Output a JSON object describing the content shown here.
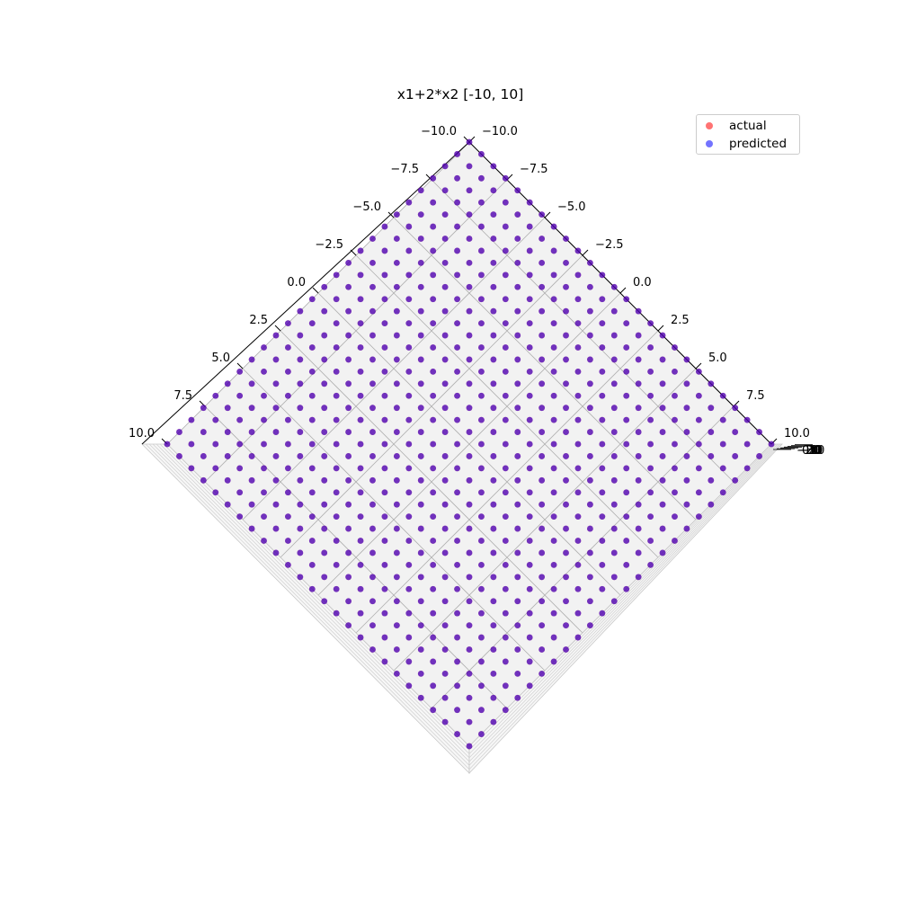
{
  "chart_data": {
    "type": "scatter",
    "projection": "3d",
    "title": "x1+2*x2 [-10, 10]",
    "x_axis": {
      "label": "",
      "range": [
        -10,
        10
      ],
      "ticks": [
        "−10.0",
        "−7.5",
        "−5.0",
        "−2.5",
        "0.0",
        "2.5",
        "5.0",
        "7.5",
        "10.0"
      ]
    },
    "y_axis": {
      "label": "",
      "range": [
        -10,
        10
      ],
      "ticks": [
        "−10.0",
        "−7.5",
        "−5.0",
        "−2.5",
        "0.0",
        "2.5",
        "5.0",
        "7.5",
        "10.0"
      ]
    },
    "z_axis": {
      "label": "",
      "ticks": [
        "−30",
        "−20",
        "−10",
        "0",
        "10",
        "20",
        "30"
      ],
      "note": "tick labels overlap (edge-on view)"
    },
    "grid": true,
    "view": "top-down, axes rotated 45 degrees",
    "x1_values": [
      -10,
      -9.2,
      -8.4,
      -7.6,
      -6.8,
      -6,
      -5.2,
      -4.4,
      -3.6,
      -2.8,
      -2,
      -1.2,
      -0.4,
      0.4,
      1.2,
      2,
      2.8,
      3.6,
      4.4,
      5.2,
      6,
      6.8,
      7.6,
      8.4,
      9.2,
      10
    ],
    "x2_values": [
      -10,
      -9.2,
      -8.4,
      -7.6,
      -6.8,
      -6,
      -5.2,
      -4.4,
      -3.6,
      -2.8,
      -2,
      -1.2,
      -0.4,
      0.4,
      1.2,
      2,
      2.8,
      3.6,
      4.4,
      5.2,
      6,
      6.8,
      7.6,
      8.4,
      9.2,
      10
    ],
    "formula": "x1+2*x2",
    "series": [
      {
        "name": "actual",
        "color": "#ff0000",
        "alpha": 0.55
      },
      {
        "name": "predicted",
        "color": "#0000ff",
        "alpha": 0.55
      }
    ],
    "legend": {
      "placement": "top-right",
      "entries": [
        "actual",
        "predicted"
      ]
    }
  },
  "colors": {
    "pane": "#f2f2f2",
    "grid": "#b0b0b0",
    "actual": "#ff0000",
    "predicted": "#0000ff"
  }
}
